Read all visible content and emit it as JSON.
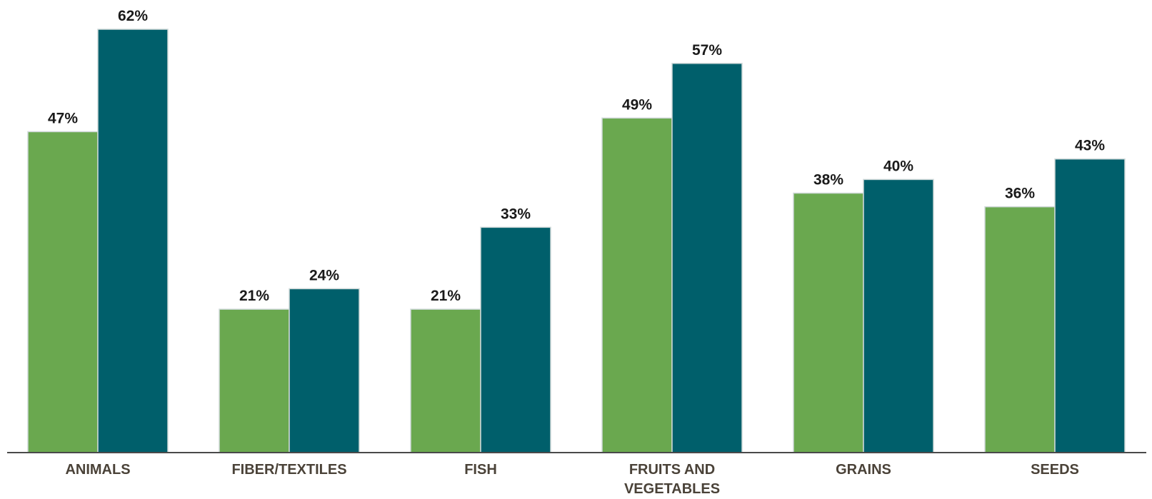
{
  "chart_data": {
    "type": "bar",
    "title": "",
    "xlabel": "",
    "ylabel": "",
    "ylim": [
      0,
      62
    ],
    "grid": false,
    "legend": "none",
    "categories": [
      [
        "ANIMALS"
      ],
      [
        "FIBER/TEXTILES"
      ],
      [
        "FISH"
      ],
      [
        "FRUITS AND",
        "VEGETABLES"
      ],
      [
        "GRAINS"
      ],
      [
        "SEEDS"
      ]
    ],
    "series": [
      {
        "color": "#6aa84f",
        "values": [
          47,
          21,
          21,
          49,
          38,
          36
        ],
        "labels": [
          "47%",
          "21%",
          "21%",
          "49%",
          "38%",
          "36%"
        ]
      },
      {
        "color": "#005f6b",
        "values": [
          62,
          24,
          33,
          57,
          40,
          43
        ],
        "labels": [
          "62%",
          "24%",
          "33%",
          "57%",
          "40%",
          "43%"
        ]
      }
    ],
    "axis_color": "#4a4a4a",
    "bar_edge_color": "#cfd8d8"
  }
}
